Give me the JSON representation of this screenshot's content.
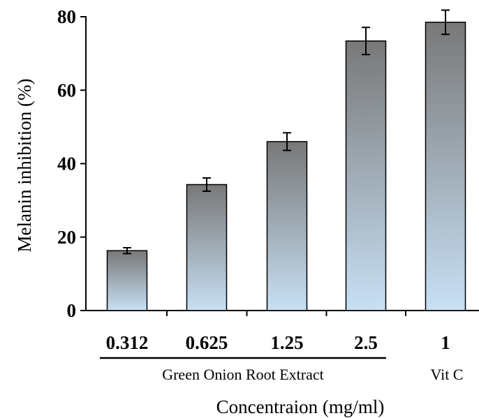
{
  "chart_data": {
    "type": "bar",
    "title": "",
    "xlabel": "Concentraion (mg/ml)",
    "ylabel": "Melanin inhibition (%)",
    "ylim": [
      0,
      80
    ],
    "yticks": [
      0,
      20,
      40,
      60,
      80
    ],
    "grid": false,
    "categories": [
      "0.312",
      "0.625",
      "1.25",
      "2.5",
      "1"
    ],
    "values": [
      16.3,
      34.3,
      46.0,
      73.4,
      78.5
    ],
    "errors": [
      0.8,
      1.8,
      2.4,
      3.7,
      3.3
    ],
    "groups": [
      {
        "label": "Green Onion Root Extract",
        "categories": [
          "0.312",
          "0.625",
          "1.25",
          "2.5"
        ]
      },
      {
        "label": "Vit C",
        "categories": [
          "1"
        ]
      }
    ],
    "colors": {
      "bar_top": "#787878",
      "bar_bottom": "#c8e0f4",
      "stroke": "#000000"
    }
  }
}
